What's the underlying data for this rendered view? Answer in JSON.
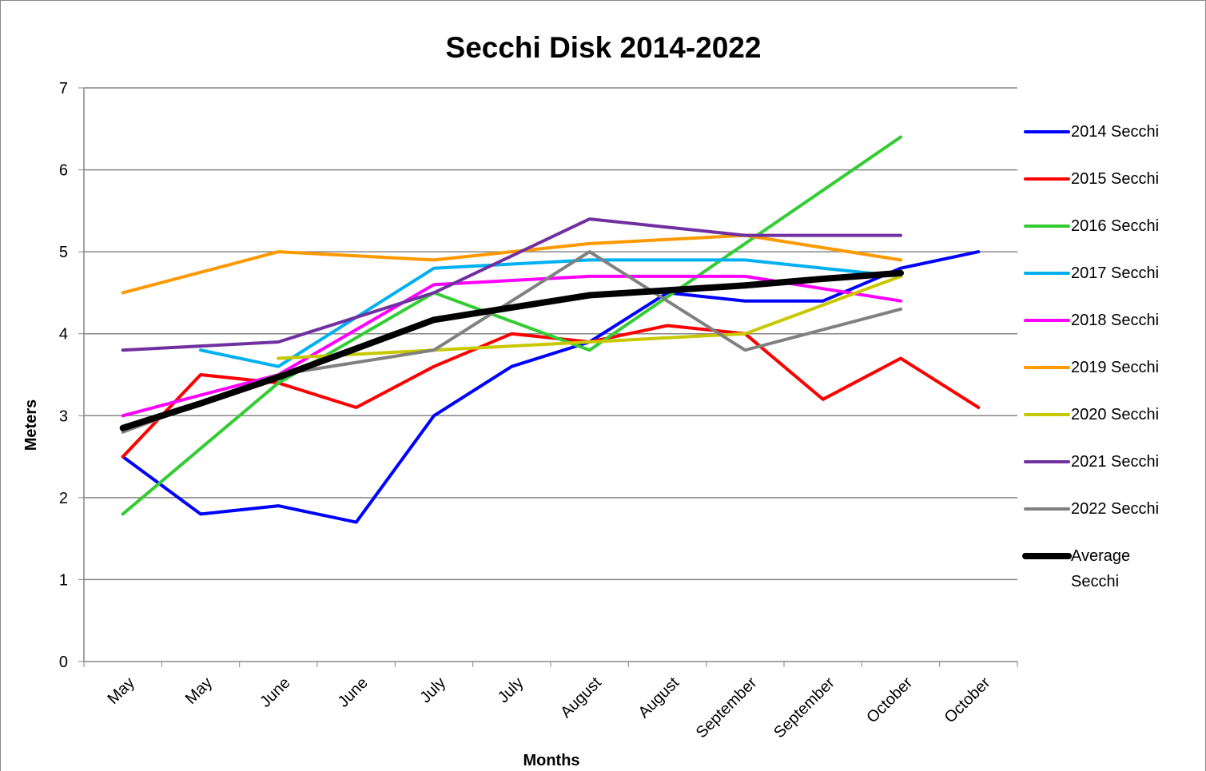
{
  "chart_data": {
    "type": "line",
    "title": "Secchi Disk 2014-2022",
    "x_label": "Months",
    "y_label": "Meters",
    "categories": [
      "May",
      "May",
      "June",
      "June",
      "July",
      "July",
      "August",
      "August",
      "September",
      "September",
      "October",
      "October"
    ],
    "ylim": [
      0,
      7
    ],
    "yticks": [
      0,
      1,
      2,
      3,
      4,
      5,
      6,
      7
    ],
    "grid": true,
    "legend": "right",
    "series": [
      {
        "name": "2014 Secchi",
        "color": "#0000ff",
        "values": [
          2.5,
          1.8,
          1.9,
          1.7,
          3.0,
          3.6,
          3.9,
          4.5,
          4.4,
          4.4,
          4.8,
          5.0
        ]
      },
      {
        "name": "2015 Secchi",
        "color": "#ff0000",
        "values": [
          2.5,
          3.5,
          3.4,
          3.1,
          3.6,
          4.0,
          3.9,
          4.1,
          4.0,
          3.2,
          3.7,
          3.1
        ]
      },
      {
        "name": "2016 Secchi",
        "color": "#33cc33",
        "values": [
          1.8,
          2.6,
          3.4,
          3.95,
          4.5,
          4.15,
          3.8,
          4.45,
          5.1,
          5.75,
          6.4,
          null
        ]
      },
      {
        "name": "2017 Secchi",
        "color": "#00b0f0",
        "values": [
          null,
          3.8,
          3.6,
          4.2,
          4.8,
          4.85,
          4.9,
          4.9,
          4.9,
          4.8,
          4.7,
          null
        ]
      },
      {
        "name": "2018 Secchi",
        "color": "#ff00ff",
        "values": [
          3.0,
          3.25,
          3.5,
          4.05,
          4.6,
          4.65,
          4.7,
          4.7,
          4.7,
          4.55,
          4.4,
          null
        ]
      },
      {
        "name": "2019 Secchi",
        "color": "#ff9900",
        "values": [
          4.5,
          4.75,
          5.0,
          4.95,
          4.9,
          5.0,
          5.1,
          5.15,
          5.2,
          5.05,
          4.9,
          null
        ]
      },
      {
        "name": "2020 Secchi",
        "color": "#c8c800",
        "values": [
          null,
          null,
          3.7,
          3.75,
          3.8,
          3.85,
          3.9,
          3.95,
          4.0,
          4.35,
          4.7,
          null
        ]
      },
      {
        "name": "2021 Secchi",
        "color": "#7030a0",
        "values": [
          3.8,
          3.85,
          3.9,
          4.2,
          4.5,
          4.95,
          5.4,
          5.3,
          5.2,
          5.2,
          5.2,
          null
        ]
      },
      {
        "name": "2022 Secchi",
        "color": "#808080",
        "values": [
          2.8,
          3.15,
          3.5,
          3.65,
          3.8,
          4.4,
          5.0,
          4.4,
          3.8,
          4.05,
          4.3,
          null
        ]
      },
      {
        "name": "Average Secchi",
        "color": "#000000",
        "values": [
          2.85,
          3.15,
          3.47,
          3.82,
          4.17,
          4.32,
          4.47,
          4.53,
          4.59,
          4.67,
          4.74,
          null
        ]
      }
    ]
  }
}
